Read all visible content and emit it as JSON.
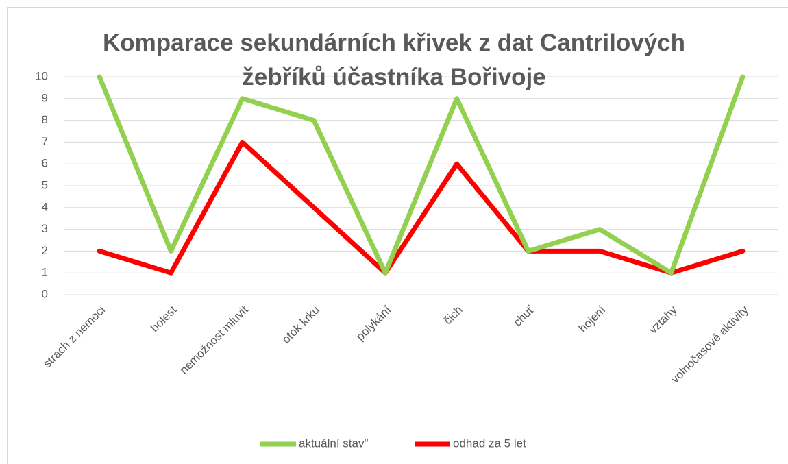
{
  "chart_data": {
    "type": "line",
    "title": "Komparace sekundárních křivek z dat Cantrilových žebříků účastníka Bořivoje",
    "categories": [
      "strach z nemoci",
      "bolest",
      "nemožnost mluvit",
      "otok krku",
      "polykání",
      "čich",
      "chuť",
      "hojení",
      "vztahy",
      "volnočasové aktivity"
    ],
    "series": [
      {
        "name": "aktuální stav\"",
        "color": "#92d050",
        "values": [
          10,
          2,
          9,
          8,
          1,
          9,
          2,
          3,
          1,
          10
        ]
      },
      {
        "name": "odhad za 5 let",
        "color": "#ff0000",
        "values": [
          2,
          1,
          7,
          4,
          1,
          6,
          2,
          2,
          1,
          2
        ]
      }
    ],
    "ylim": [
      0,
      10
    ],
    "yticks": [
      0,
      1,
      2,
      3,
      4,
      5,
      6,
      7,
      8,
      9,
      10
    ],
    "grid": true,
    "legend": "bottom"
  }
}
